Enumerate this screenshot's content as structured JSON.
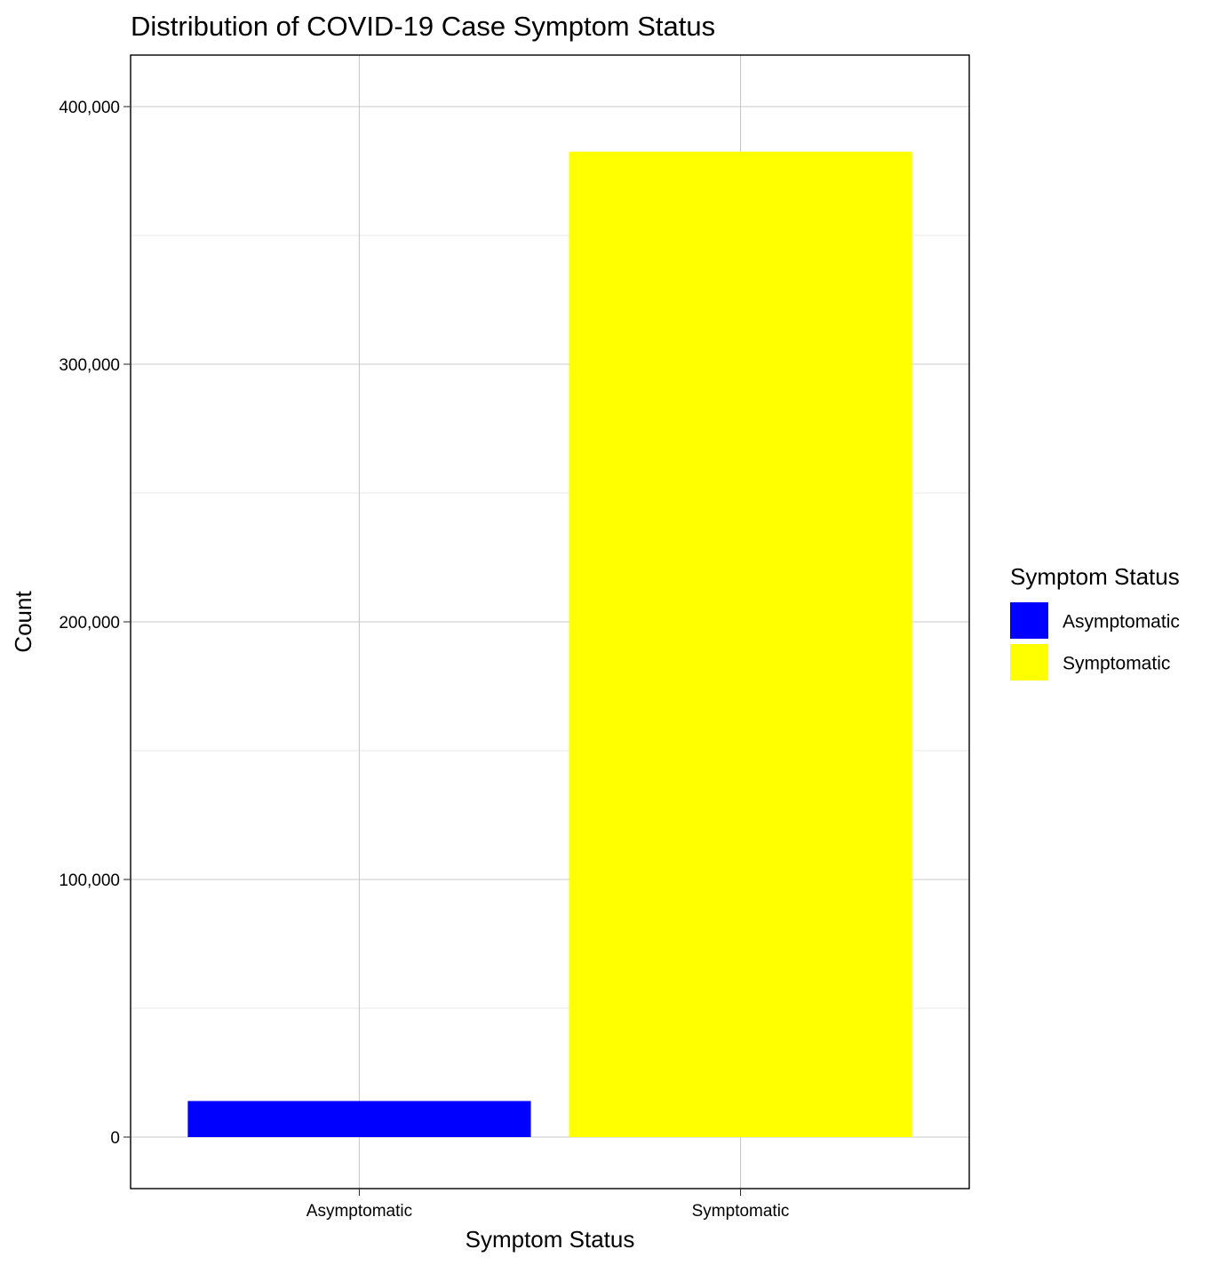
{
  "chart_data": {
    "type": "bar",
    "title": "Distribution of COVID-19 Case Symptom Status",
    "xlabel": "Symptom Status",
    "ylabel": "Count",
    "categories": [
      "Asymptomatic",
      "Symptomatic"
    ],
    "values": [
      14000,
      382500
    ],
    "colors": [
      "#0000FF",
      "#FFFF00"
    ],
    "ylim": [
      -20000,
      420000
    ],
    "yticks": [
      0,
      100000,
      200000,
      300000,
      400000
    ],
    "ytick_labels": [
      "0",
      "100,000",
      "200,000",
      "300,000",
      "400,000"
    ],
    "yminor": [
      50000,
      150000,
      250000,
      350000
    ],
    "grid": true,
    "legend": {
      "title": "Symptom Status",
      "position": "right",
      "entries": [
        {
          "label": "Asymptomatic",
          "color": "#0000FF"
        },
        {
          "label": "Symptomatic",
          "color": "#FFFF00"
        }
      ]
    }
  }
}
